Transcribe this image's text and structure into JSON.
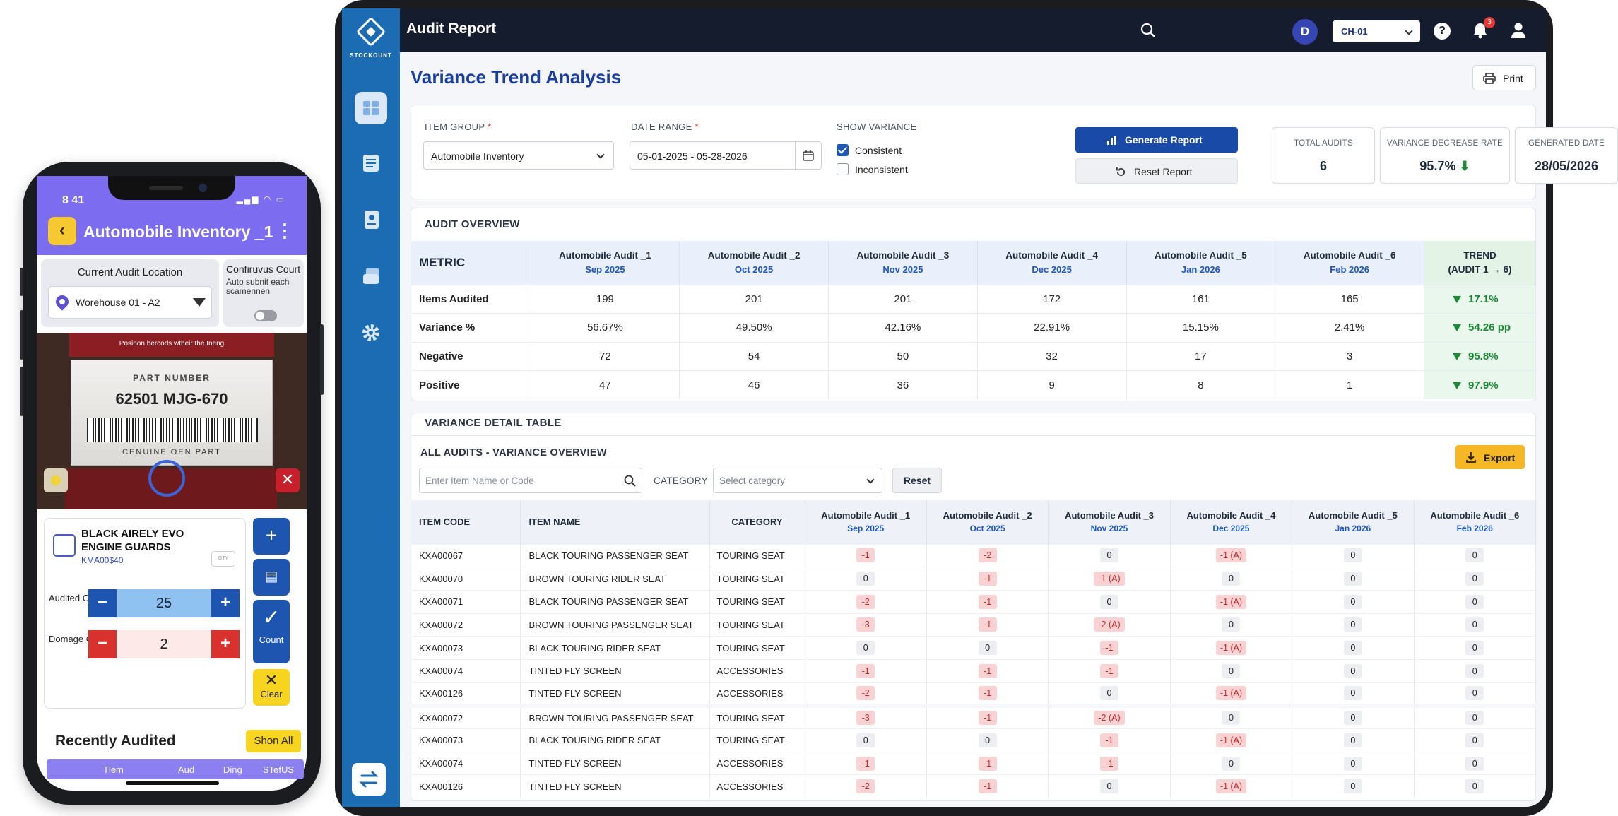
{
  "phone": {
    "status_time": "8 41",
    "title": "Automobile Inventory _1",
    "location_label": "Current Audit Location",
    "location_value": "Worehouse 01 - A2",
    "continuous_title": "Confiruvus Court",
    "continuous_desc": "Auto subnit each scamennen",
    "camera_hint": "Posinon bercods wtheir the Ineng",
    "label_part": "PART NUMBER",
    "label_number": "62501 MJG-670",
    "label_genuine": "CENUINE OEN PART",
    "item_name": "BLACK AIRELY EVO ENGINE GUARDS",
    "item_code": "KMA00$40",
    "gty_tag": "GTY",
    "audited_label": "Audited Oty",
    "audited_value": "25",
    "damage_label": "Domage Oty",
    "damage_value": "2",
    "count_label": "Count",
    "clear_label": "Clear",
    "recent_title": "Recently Audited",
    "show_all": "Shon All",
    "footer_cols": [
      "Tlem",
      "Aud",
      "Ding",
      "STefUS"
    ]
  },
  "app": {
    "logo_text": "STOCKOUNT",
    "title": "Audit Report",
    "avatar": "D",
    "store": "CH-01",
    "help": "?",
    "notifications": "3"
  },
  "page": {
    "title": "Variance Trend Analysis",
    "print": "Print"
  },
  "filters": {
    "item_group_label": "ITEM GROUP",
    "item_group_value": "Automobile Inventory",
    "date_range_label": "DATE RANGE",
    "date_range_value": "05-01-2025 - 05-28-2026",
    "show_variance_label": "SHOW VARIANCE",
    "consistent": "Consistent",
    "inconsistent": "Inconsistent",
    "required": "*",
    "generate": "Generate Report",
    "reset": "Reset Report"
  },
  "stats": {
    "total_audits_label": "TOTAL AUDITS",
    "total_audits": "6",
    "decrease_label": "VARIANCE DECREASE RATE",
    "decrease_value": "95.7%",
    "generated_label": "GENERATED DATE",
    "generated_value": "28/05/2026"
  },
  "overview": {
    "title": "AUDIT OVERVIEW",
    "metric_header": "METRIC",
    "trend_header": "TREND",
    "trend_sub": "(AUDIT 1 → 6)",
    "audits": [
      {
        "name": "Automobile Audit _1",
        "date": "Sep 2025"
      },
      {
        "name": "Automobile Audit _2",
        "date": "Oct 2025"
      },
      {
        "name": "Automobile Audit _3",
        "date": "Nov 2025"
      },
      {
        "name": "Automobile Audit _4",
        "date": "Dec 2025"
      },
      {
        "name": "Automobile Audit _5",
        "date": "Jan 2026"
      },
      {
        "name": "Automobile Audit _6",
        "date": "Feb 2026"
      }
    ],
    "rows": [
      {
        "metric": "Items Audited",
        "values": [
          "199",
          "201",
          "201",
          "172",
          "161",
          "165"
        ],
        "trend": "17.1%"
      },
      {
        "metric": "Variance %",
        "values": [
          "56.67%",
          "49.50%",
          "42.16%",
          "22.91%",
          "15.15%",
          "2.41%"
        ],
        "trend": "54.26 pp"
      },
      {
        "metric": "Negative",
        "values": [
          "72",
          "54",
          "50",
          "32",
          "17",
          "3"
        ],
        "trend": "95.8%"
      },
      {
        "metric": "Positive",
        "values": [
          "47",
          "46",
          "36",
          "9",
          "8",
          "1"
        ],
        "trend": "97.9%"
      }
    ]
  },
  "detail": {
    "title": "VARIANCE DETAIL TABLE",
    "subtitle": "ALL AUDITS - VARIANCE OVERVIEW",
    "search_placeholder": "Enter Item Name or Code",
    "category_label": "CATEGORY",
    "category_placeholder": "Select category",
    "reset": "Reset",
    "export": "Export",
    "headers": [
      "ITEM CODE",
      "ITEM NAME",
      "CATEGORY"
    ],
    "audit_headers": [
      {
        "name": "Automobile Audit _1",
        "date": "Sep 2025"
      },
      {
        "name": "Automobile Audit _2",
        "date": "Oct 2025"
      },
      {
        "name": "Automobile Audit _3",
        "date": "Nov 2025"
      },
      {
        "name": "Automobile Audit _4",
        "date": "Dec 2025"
      },
      {
        "name": "Automobile Audit _5",
        "date": "Jan 2026"
      },
      {
        "name": "Automobile Audit _6",
        "date": "Feb 2026"
      }
    ],
    "rows": [
      {
        "code": "KXA00067",
        "name": "BLACK TOURING PASSENGER SEAT",
        "cat": "TOURING SEAT",
        "v": [
          "-1",
          "-2",
          "0",
          "-1 (A)",
          "0",
          "0"
        ]
      },
      {
        "code": "KXA00070",
        "name": "BROWN TOURING RIDER SEAT",
        "cat": "TOURING SEAT",
        "v": [
          "0",
          "-1",
          "-1 (A)",
          "0",
          "0",
          "0"
        ]
      },
      {
        "code": "KXA00071",
        "name": "BLACK TOURING PASSENGER SEAT",
        "cat": "TOURING SEAT",
        "v": [
          "-2",
          "-1",
          "0",
          "-1 (A)",
          "0",
          "0"
        ]
      },
      {
        "code": "KXA00072",
        "name": "BROWN TOURING PASSENGER SEAT",
        "cat": "TOURING SEAT",
        "v": [
          "-3",
          "-1",
          "-2 (A)",
          "0",
          "0",
          "0"
        ]
      },
      {
        "code": "KXA00073",
        "name": "BLACK TOURING RIDER SEAT",
        "cat": "TOURING SEAT",
        "v": [
          "0",
          "0",
          "-1",
          "-1 (A)",
          "0",
          "0"
        ]
      },
      {
        "code": "KXA00074",
        "name": "TINTED FLY SCREEN",
        "cat": "ACCESSORIES",
        "v": [
          "-1",
          "-1",
          "-1",
          "0",
          "0",
          "0"
        ]
      },
      {
        "code": "KXA00126",
        "name": "TINTED FLY SCREEN",
        "cat": "ACCESSORIES",
        "v": [
          "-2",
          "-1",
          "0",
          "-1 (A)",
          "0",
          "0"
        ]
      },
      {
        "code": "KXA00072",
        "name": "BROWN TOURING PASSENGER SEAT",
        "cat": "TOURING SEAT",
        "v": [
          "-3",
          "-1",
          "-2 (A)",
          "0",
          "0",
          "0"
        ]
      },
      {
        "code": "KXA00073",
        "name": "BLACK TOURING RIDER SEAT",
        "cat": "TOURING SEAT",
        "v": [
          "0",
          "0",
          "-1",
          "-1 (A)",
          "0",
          "0"
        ]
      },
      {
        "code": "KXA00074",
        "name": "TINTED FLY SCREEN",
        "cat": "ACCESSORIES",
        "v": [
          "-1",
          "-1",
          "-1",
          "0",
          "0",
          "0"
        ]
      },
      {
        "code": "KXA00126",
        "name": "TINTED FLY SCREEN",
        "cat": "ACCESSORIES",
        "v": [
          "-2",
          "-1",
          "0",
          "-1 (A)",
          "0",
          "0"
        ]
      }
    ]
  },
  "colors": {
    "sidebar": "#1c6cb4",
    "topbar": "#141c2e",
    "primary": "#1a4aa8",
    "phone_accent": "#7b6cf0",
    "negative": "#c62828",
    "trend_good": "#1b8a35"
  }
}
